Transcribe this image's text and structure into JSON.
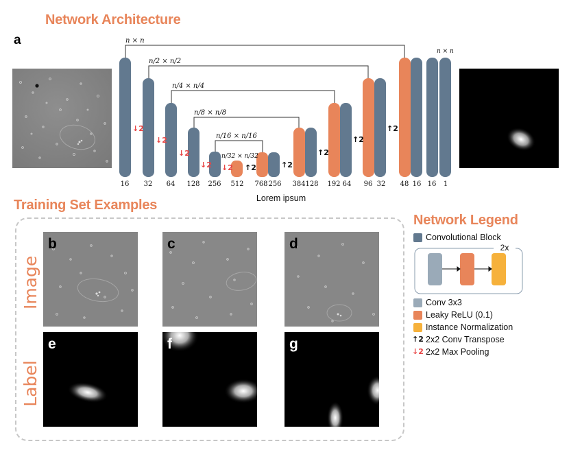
{
  "titles": {
    "architecture": "Network Architecture",
    "training": "Training Set Examples",
    "legend": "Network Legend"
  },
  "panels": {
    "a": "a",
    "b": "b",
    "c": "c",
    "d": "d",
    "e": "e",
    "f": "f",
    "g": "g"
  },
  "dims": {
    "level0": "n × n",
    "level1": "n/2 × n/2",
    "level2": "n/4 × n/4",
    "level3": "n/8 × n/8",
    "level4": "n/16 × n/16",
    "level5": "n/32 × n/32",
    "output": "n × n"
  },
  "channels": [
    "16",
    "32",
    "64",
    "128",
    "256",
    "512",
    "768",
    "256",
    "384",
    "128",
    "192",
    "64",
    "96",
    "32",
    "48",
    "16",
    "16",
    "1"
  ],
  "pool_label": "2",
  "up_label": "2",
  "caption": "Lorem ipsum",
  "row_labels": {
    "image": "Image",
    "label": "Label"
  },
  "legend": {
    "conv_block": "Convolutional Block",
    "repeat": "2x",
    "conv": "Conv 3x3",
    "relu": "Leaky ReLU (0.1)",
    "norm": "Instance Normalization",
    "transpose": "2x2 Conv Transpose",
    "pool": "2x2 Max Pooling"
  },
  "colors": {
    "accent": "#e8855a",
    "block_blue": "#62798f",
    "conv_gray": "#9aaab8",
    "relu_orange": "#e8855a",
    "norm_yellow": "#f6b13b",
    "pool_red": "#e84545"
  }
}
